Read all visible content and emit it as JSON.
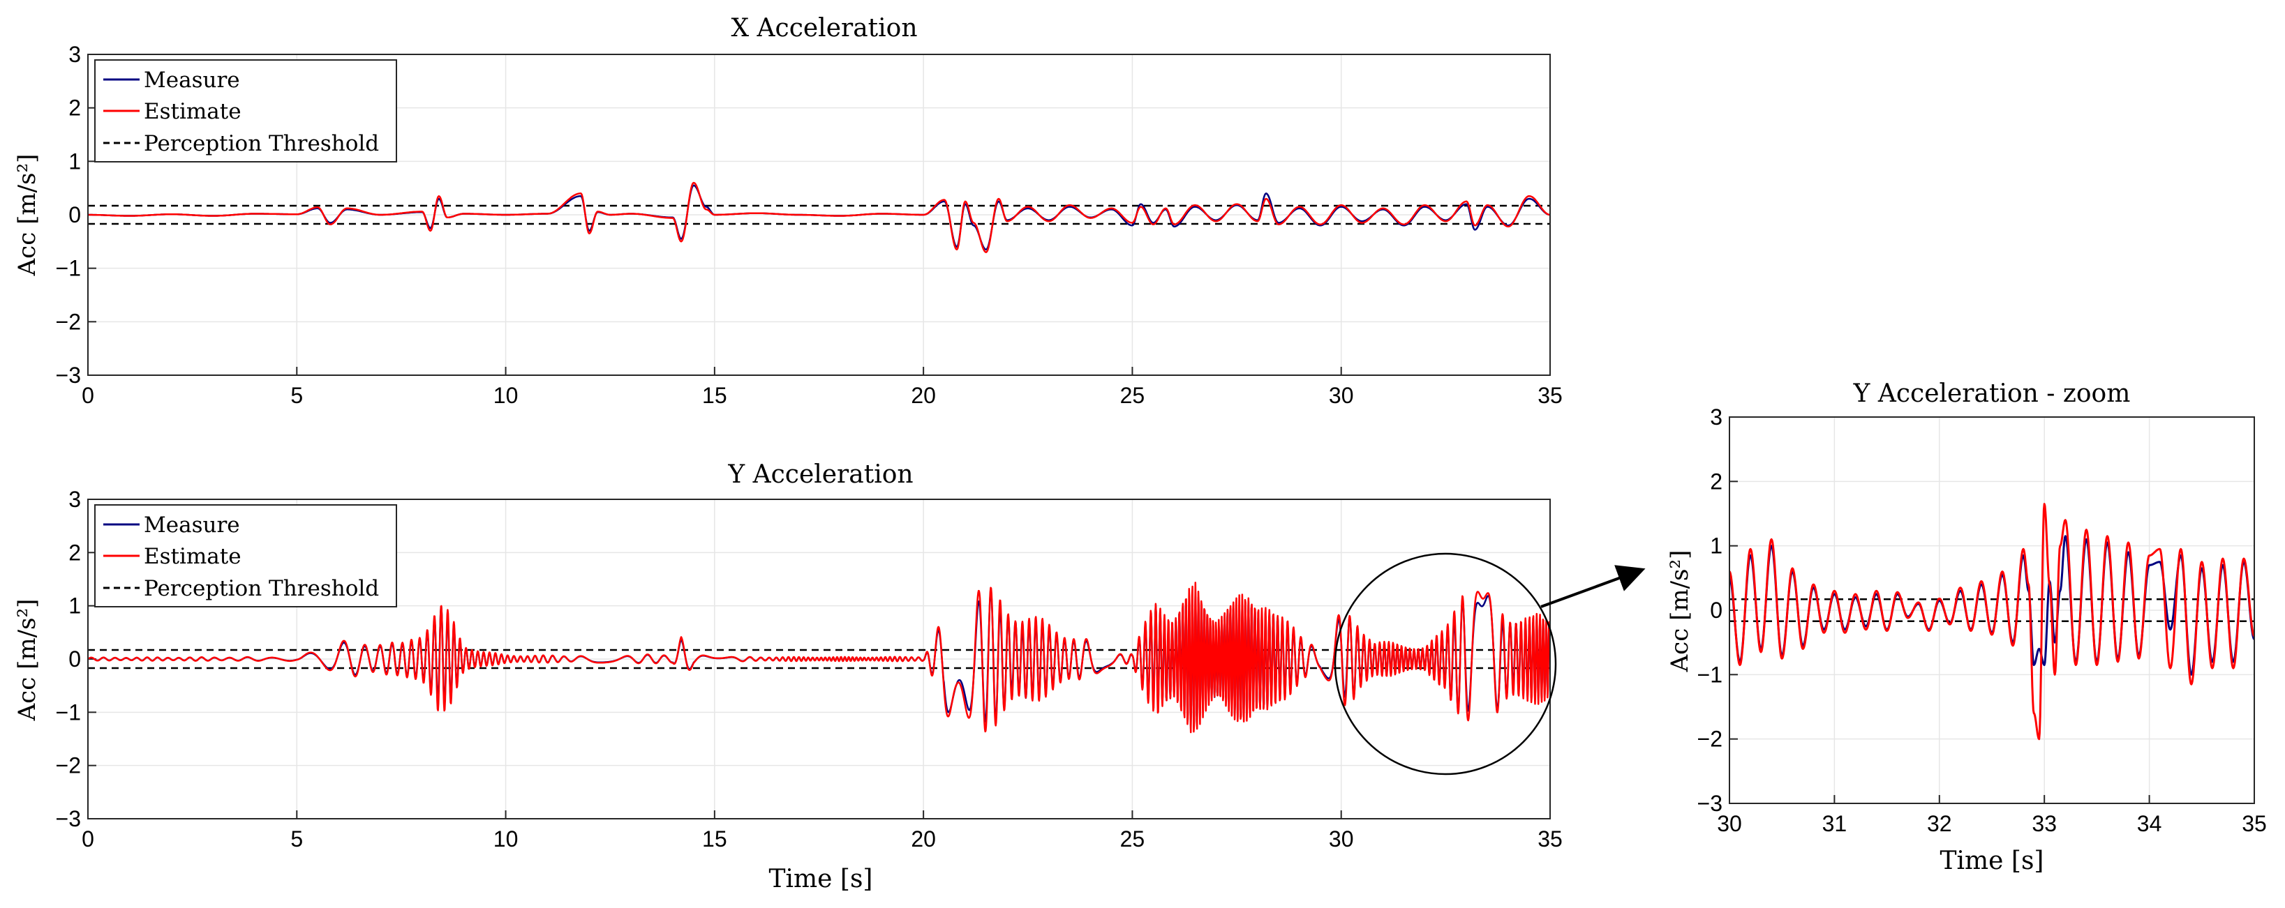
{
  "chart_data": [
    {
      "type": "line",
      "title": "X Acceleration",
      "xlabel": "",
      "ylabel": "Acc [m/s²]",
      "xlim": [
        0,
        35
      ],
      "ylim": [
        -3,
        3
      ],
      "xticks": [
        0,
        5,
        10,
        15,
        20,
        25,
        30,
        35
      ],
      "yticks": [
        -3,
        -2,
        -1,
        0,
        1,
        2,
        3
      ],
      "grid": true,
      "legend": {
        "placement": "top-left",
        "entries": [
          "Measure",
          "Estimate",
          "Perception Threshold"
        ]
      },
      "threshold": 0.17,
      "series": [
        {
          "name": "Measure",
          "color": "#000080",
          "x": [
            0,
            1,
            2,
            3,
            4,
            5,
            5.5,
            5.8,
            6.2,
            7,
            8,
            8.2,
            8.4,
            8.6,
            9,
            10,
            11,
            11.8,
            12,
            12.2,
            12.5,
            13,
            14,
            14.2,
            14.5,
            14.8,
            15,
            16,
            17,
            18,
            19,
            20,
            20.5,
            20.8,
            21,
            21.2,
            21.5,
            21.8,
            22,
            22.5,
            23,
            23.5,
            24,
            24.5,
            25,
            25.2,
            25.5,
            25.8,
            26,
            26.5,
            27,
            27.5,
            28,
            28.2,
            28.5,
            29,
            29.5,
            30,
            30.5,
            31,
            31.5,
            32,
            32.5,
            33,
            33.2,
            33.5,
            34,
            34.5,
            35
          ],
          "y": [
            0,
            -0.02,
            0.01,
            -0.02,
            0.02,
            0.01,
            0.12,
            -0.15,
            0.1,
            0,
            0.05,
            -0.25,
            0.3,
            -0.05,
            0.02,
            0,
            0.02,
            0.35,
            -0.3,
            0.05,
            0,
            0.02,
            -0.05,
            -0.45,
            0.55,
            0.15,
            0,
            0.03,
            0,
            -0.02,
            0.02,
            0,
            0.25,
            -0.6,
            0.2,
            -0.2,
            -0.65,
            0.25,
            -0.1,
            0.12,
            -0.1,
            0.15,
            -0.05,
            0.1,
            -0.2,
            0.2,
            -0.15,
            0.1,
            -0.22,
            0.15,
            -0.1,
            0.18,
            -0.1,
            0.4,
            -0.15,
            0.12,
            -0.2,
            0.15,
            -0.12,
            0.1,
            -0.2,
            0.15,
            -0.1,
            0.2,
            -0.28,
            0.15,
            -0.2,
            0.3,
            0
          ]
        },
        {
          "name": "Estimate",
          "color": "#ff0000",
          "x": [
            0,
            1,
            2,
            3,
            4,
            5,
            5.5,
            5.8,
            6.2,
            7,
            8,
            8.2,
            8.4,
            8.6,
            9,
            10,
            11,
            11.8,
            12,
            12.2,
            12.5,
            13,
            14,
            14.2,
            14.5,
            14.8,
            15,
            16,
            17,
            18,
            19,
            20,
            20.5,
            20.8,
            21,
            21.2,
            21.5,
            21.8,
            22,
            22.5,
            23,
            23.5,
            24,
            24.5,
            25,
            25.2,
            25.5,
            25.8,
            26,
            26.5,
            27,
            27.5,
            28,
            28.2,
            28.5,
            29,
            29.5,
            30,
            30.5,
            31,
            31.5,
            32,
            32.5,
            33,
            33.2,
            33.5,
            34,
            34.5,
            35
          ],
          "y": [
            0,
            -0.02,
            0.01,
            -0.02,
            0.02,
            0.01,
            0.14,
            -0.18,
            0.12,
            0,
            0.06,
            -0.3,
            0.35,
            -0.05,
            0.02,
            0,
            0.02,
            0.4,
            -0.35,
            0.06,
            0,
            0.02,
            -0.06,
            -0.5,
            0.6,
            0.1,
            0,
            0.03,
            0,
            -0.02,
            0.02,
            0,
            0.28,
            -0.65,
            0.25,
            -0.15,
            -0.7,
            0.3,
            -0.12,
            0.15,
            -0.12,
            0.18,
            -0.06,
            0.12,
            -0.15,
            0.15,
            -0.18,
            0.12,
            -0.18,
            0.18,
            -0.12,
            0.2,
            -0.12,
            0.3,
            -0.18,
            0.15,
            -0.18,
            0.18,
            -0.15,
            0.12,
            -0.18,
            0.18,
            -0.12,
            0.25,
            -0.2,
            0.18,
            -0.22,
            0.35,
            0
          ]
        }
      ]
    },
    {
      "type": "line",
      "title": "Y Acceleration",
      "xlabel": "Time [s]",
      "ylabel": "Acc [m/s²]",
      "xlim": [
        0,
        35
      ],
      "ylim": [
        -3,
        3
      ],
      "xticks": [
        0,
        5,
        10,
        15,
        20,
        25,
        30,
        35
      ],
      "yticks": [
        -3,
        -2,
        -1,
        0,
        1,
        2,
        3
      ],
      "grid": true,
      "legend": {
        "placement": "top-left",
        "entries": [
          "Measure",
          "Estimate",
          "Perception Threshold"
        ]
      },
      "threshold": 0.17,
      "zoom_region": {
        "x": [
          30,
          35
        ],
        "y": [
          -2,
          2
        ]
      },
      "series": [
        {
          "name": "Measure",
          "color": "#000080"
        },
        {
          "name": "Estimate",
          "color": "#ff0000"
        }
      ],
      "envelope": {
        "t": [
          0,
          5,
          5.5,
          6,
          7,
          7.5,
          8,
          8.4,
          8.7,
          9,
          9.5,
          10,
          11,
          12,
          13,
          14,
          14.2,
          14.5,
          15,
          16,
          17,
          18,
          19,
          20,
          20.3,
          20.8,
          21.3,
          22,
          23,
          24,
          24.5,
          25,
          25.3,
          25.6,
          26,
          26.5,
          27,
          27.5,
          28,
          28.2,
          28.5,
          29,
          29.5,
          30,
          30.3,
          30.8,
          31.5,
          32,
          32.5,
          32.9,
          33.1,
          33.5,
          34,
          34.5,
          35
        ],
        "amp": [
          0.03,
          0.04,
          0.2,
          0.35,
          0.35,
          0.3,
          0.6,
          1.1,
          0.85,
          0.3,
          0.15,
          0.08,
          0.07,
          0.07,
          0.08,
          0.1,
          0.5,
          0.1,
          0.05,
          0.04,
          0.04,
          0.04,
          0.04,
          0.05,
          0.5,
          1.6,
          1.55,
          1.1,
          0.7,
          0.35,
          0.15,
          0.1,
          0.7,
          1.4,
          0.9,
          1.5,
          1.0,
          1.2,
          1.3,
          1.4,
          0.9,
          0.5,
          0.3,
          0.9,
          0.95,
          0.35,
          0.3,
          0.25,
          0.6,
          1.7,
          1.5,
          1.25,
          1.0,
          0.85,
          0.85
        ]
      }
    },
    {
      "type": "line",
      "title": "Y Acceleration - zoom",
      "xlabel": "Time [s]",
      "ylabel": "Acc [m/s²]",
      "xlim": [
        30,
        35
      ],
      "ylim": [
        -3,
        3
      ],
      "xticks": [
        30,
        31,
        32,
        33,
        34,
        35
      ],
      "yticks": [
        -3,
        -2,
        -1,
        0,
        1,
        2,
        3
      ],
      "grid": true,
      "threshold": 0.17,
      "series": [
        {
          "name": "Measure",
          "color": "#000080",
          "x": [
            30,
            30.1,
            30.2,
            30.3,
            30.4,
            30.5,
            30.6,
            30.7,
            30.8,
            30.9,
            31,
            31.1,
            31.2,
            31.3,
            31.4,
            31.5,
            31.6,
            31.7,
            31.8,
            31.9,
            32,
            32.1,
            32.2,
            32.3,
            32.4,
            32.5,
            32.6,
            32.7,
            32.8,
            32.85,
            32.9,
            32.95,
            33,
            33.05,
            33.1,
            33.15,
            33.2,
            33.3,
            33.4,
            33.5,
            33.6,
            33.7,
            33.8,
            33.9,
            34,
            34.1,
            34.2,
            34.3,
            34.4,
            34.5,
            34.6,
            34.7,
            34.8,
            34.9,
            35
          ],
          "y": [
            0.5,
            -0.8,
            0.85,
            -0.6,
            1.0,
            -0.7,
            0.6,
            -0.55,
            0.35,
            -0.3,
            0.25,
            -0.3,
            0.2,
            -0.25,
            0.25,
            -0.3,
            0.25,
            -0.1,
            0.1,
            -0.3,
            0.15,
            -0.2,
            0.3,
            -0.3,
            0.4,
            -0.35,
            0.55,
            -0.5,
            0.85,
            0.3,
            -0.85,
            -0.6,
            -0.85,
            0.45,
            -0.5,
            0.3,
            1.15,
            -0.8,
            1.1,
            -0.8,
            1.05,
            -0.75,
            0.9,
            -0.7,
            0.7,
            0.75,
            -0.3,
            0.85,
            -1.0,
            0.65,
            -0.8,
            0.7,
            -0.8,
            0.75,
            -0.45
          ]
        },
        {
          "name": "Estimate",
          "color": "#ff0000",
          "x": [
            30,
            30.1,
            30.2,
            30.3,
            30.4,
            30.5,
            30.6,
            30.7,
            30.8,
            30.9,
            31,
            31.1,
            31.2,
            31.3,
            31.4,
            31.5,
            31.6,
            31.7,
            31.8,
            31.9,
            32,
            32.1,
            32.2,
            32.3,
            32.4,
            32.5,
            32.6,
            32.7,
            32.8,
            32.85,
            32.9,
            32.95,
            33,
            33.05,
            33.1,
            33.15,
            33.2,
            33.3,
            33.4,
            33.5,
            33.6,
            33.7,
            33.8,
            33.9,
            34,
            34.1,
            34.2,
            34.3,
            34.4,
            34.5,
            34.6,
            34.7,
            34.8,
            34.9,
            35
          ],
          "y": [
            0.6,
            -0.85,
            0.95,
            -0.65,
            1.1,
            -0.75,
            0.65,
            -0.6,
            0.4,
            -0.35,
            0.3,
            -0.35,
            0.25,
            -0.3,
            0.3,
            -0.32,
            0.28,
            -0.12,
            0.12,
            -0.32,
            0.18,
            -0.22,
            0.35,
            -0.32,
            0.45,
            -0.38,
            0.6,
            -0.55,
            0.95,
            0.4,
            -1.6,
            -2.0,
            1.65,
            0.4,
            -1.0,
            1.0,
            1.4,
            -0.85,
            1.25,
            -0.85,
            1.15,
            -0.8,
            1.05,
            -0.75,
            0.85,
            0.95,
            -0.9,
            0.95,
            -1.15,
            0.75,
            -0.9,
            0.8,
            -0.9,
            0.8,
            -0.4
          ]
        }
      ]
    }
  ]
}
